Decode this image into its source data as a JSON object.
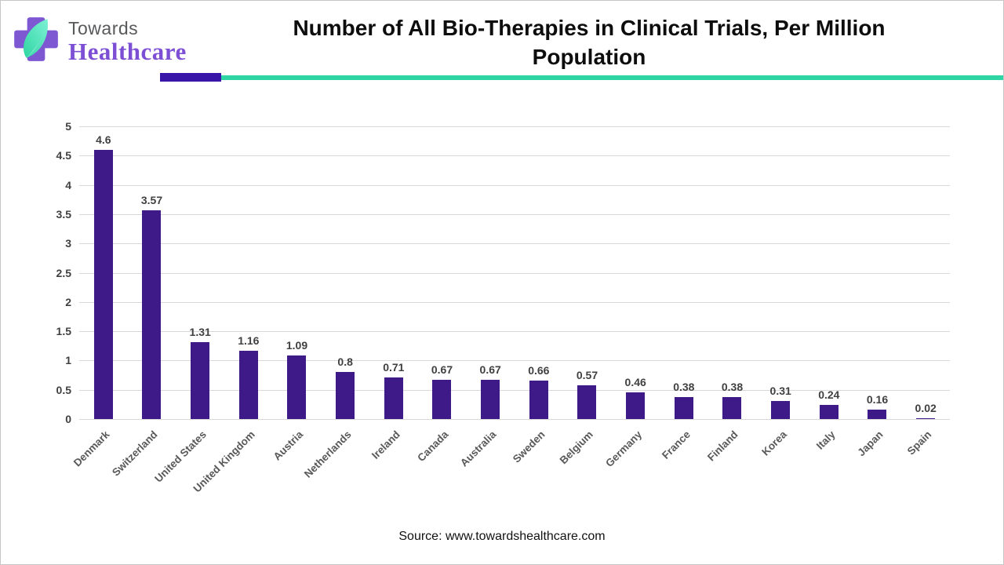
{
  "brand": {
    "towards": "Towards",
    "healthcare": "Healthcare"
  },
  "header": {
    "title": "Number of All Bio-Therapies in Clinical Trials, Per Million Population"
  },
  "footer": {
    "source": "Source: www.towardshealthcare.com"
  },
  "colors": {
    "bar": "#3d1a87",
    "accent_purple": "#3a16a8",
    "accent_teal": "#2fd6a3",
    "logo_cross": "#7e57d2",
    "logo_leaf": "#4fe3c1",
    "brand_purple": "#7c4fd4",
    "gridline": "#d9d9d9"
  },
  "chart_data": {
    "type": "bar",
    "title": "Number of All Bio-Therapies in Clinical Trials, Per Million Population",
    "categories": [
      "Denmark",
      "Switzerland",
      "United States",
      "United Kingdom",
      "Austria",
      "Netherlands",
      "Ireland",
      "Canada",
      "Australia",
      "Sweden",
      "Belgium",
      "Germany",
      "France",
      "Finland",
      "Korea",
      "Italy",
      "Japan",
      "Spain"
    ],
    "values": [
      4.6,
      3.57,
      1.31,
      1.16,
      1.09,
      0.8,
      0.71,
      0.67,
      0.67,
      0.66,
      0.57,
      0.46,
      0.38,
      0.38,
      0.31,
      0.24,
      0.16,
      0.02
    ],
    "value_labels": [
      "4.6",
      "3.57",
      "1.31",
      "1.16",
      "1.09",
      "0.8",
      "0.71",
      "0.67",
      "0.67",
      "0.66",
      "0.57",
      "0.46",
      "0.38",
      "0.38",
      "0.31",
      "0.24",
      "0.16",
      "0.02"
    ],
    "xlabel": "",
    "ylabel": "",
    "ylim": [
      0,
      5
    ],
    "ytick_labels": [
      "0",
      "0.5",
      "1",
      "1.5",
      "2",
      "2.5",
      "3",
      "3.5",
      "4",
      "4.5",
      "5"
    ],
    "grid": true,
    "legend": false,
    "bar_color": "#3d1a87"
  }
}
